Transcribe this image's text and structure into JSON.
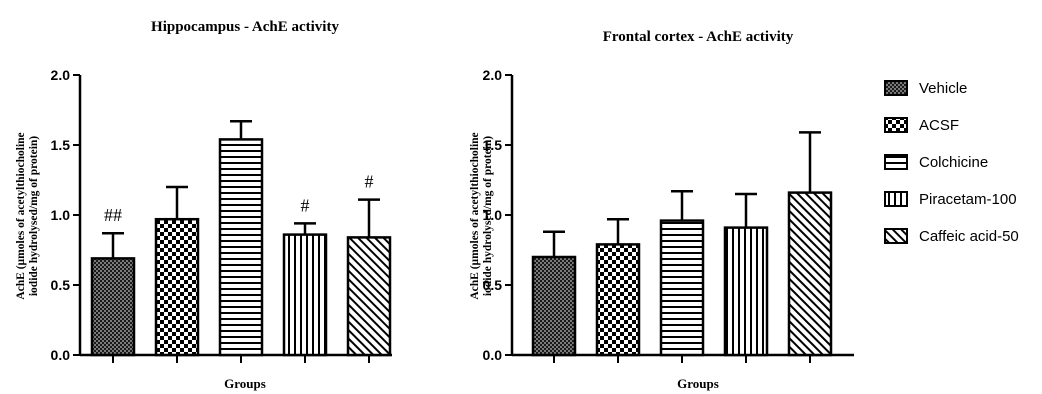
{
  "chart_data": [
    {
      "type": "bar",
      "title": "Hippocampus - AchE activity",
      "ylabel_lines": [
        "AchE (µmoles of acetylthiocholine",
        "iodide hydrolysed/mg of protein)"
      ],
      "xlabel": "Groups",
      "ylim": [
        0,
        2.0
      ],
      "yticks": [
        "0.0",
        "0.5",
        "1.0",
        "1.5",
        "2.0"
      ],
      "categories": [
        "Vehicle",
        "ACSF",
        "Colchicine",
        "Piracetam-100",
        "Caffeic acid-50"
      ],
      "values": [
        0.69,
        0.97,
        1.54,
        0.86,
        0.84
      ],
      "errors": [
        0.18,
        0.23,
        0.13,
        0.08,
        0.27
      ],
      "annotations": [
        "##",
        "",
        "",
        "#",
        "#"
      ],
      "legend": false
    },
    {
      "type": "bar",
      "title": "Frontal cortex - AchE activity",
      "ylabel_lines": [
        "AchE (µmoles of acetylthiocholine",
        "iodide hydrolysed/mg of protein)"
      ],
      "xlabel": "Groups",
      "ylim": [
        0,
        2.0
      ],
      "yticks": [
        "0.0",
        "0.5",
        "1.0",
        "1.5",
        "2.0"
      ],
      "categories": [
        "Vehicle",
        "ACSF",
        "Colchicine",
        "Piracetam-100",
        "Caffeic acid-50"
      ],
      "values": [
        0.7,
        0.79,
        0.96,
        0.91,
        1.16
      ],
      "errors": [
        0.18,
        0.18,
        0.21,
        0.24,
        0.43
      ],
      "annotations": [
        "",
        "",
        "",
        "",
        ""
      ],
      "legend": true,
      "legend_position": "right"
    }
  ],
  "legend": {
    "items": [
      {
        "label": "Vehicle",
        "pattern": "dense-dots"
      },
      {
        "label": "ACSF",
        "pattern": "checker"
      },
      {
        "label": "Colchicine",
        "pattern": "horizontal-lines"
      },
      {
        "label": "Piracetam-100",
        "pattern": "vertical-lines"
      },
      {
        "label": "Caffeic acid-50",
        "pattern": "diagonal-lines"
      }
    ]
  }
}
